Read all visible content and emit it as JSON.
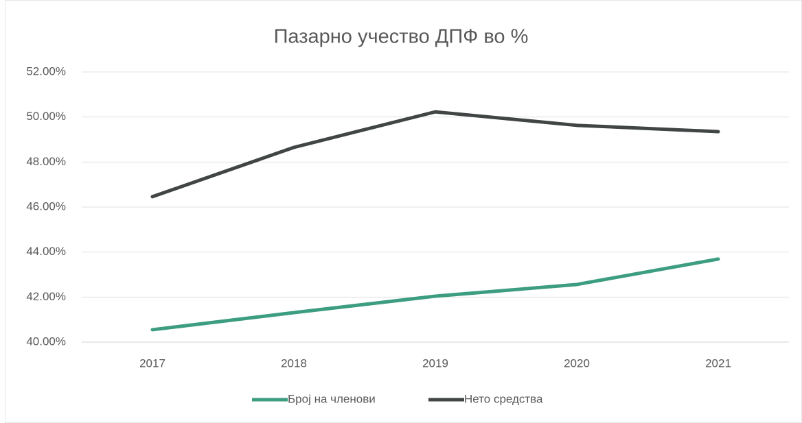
{
  "chart_data": {
    "type": "line",
    "title": "Пазарно учество ДПФ во %",
    "categories": [
      "2017",
      "2018",
      "2019",
      "2020",
      "2021"
    ],
    "series": [
      {
        "name": "Број на членови",
        "color": "#3c9d80",
        "values": [
          40.55,
          41.31,
          42.04,
          42.56,
          43.69
        ]
      },
      {
        "name": "Нето средства",
        "color": "#414545",
        "values": [
          46.46,
          48.65,
          50.23,
          49.63,
          49.35
        ]
      }
    ],
    "ylim": [
      40,
      52
    ],
    "yticks": [
      {
        "value": 40,
        "label": "40.00%"
      },
      {
        "value": 42,
        "label": "42.00%"
      },
      {
        "value": 44,
        "label": "44.00%"
      },
      {
        "value": 46,
        "label": "46.00%"
      },
      {
        "value": 48,
        "label": "48.00%"
      },
      {
        "value": 50,
        "label": "50.00%"
      },
      {
        "value": 52,
        "label": "52.00%"
      }
    ],
    "grid": true,
    "legend": "bottom"
  }
}
